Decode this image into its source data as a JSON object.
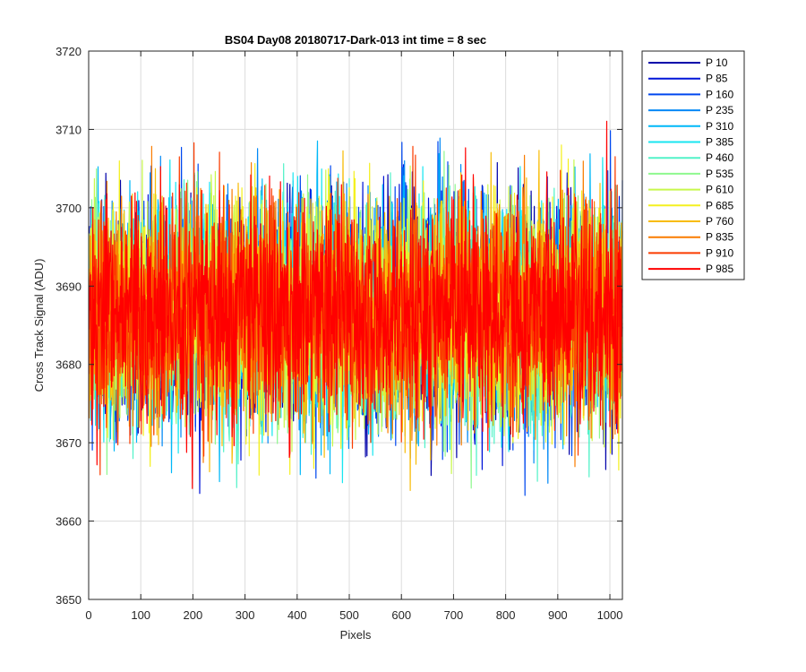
{
  "chart_data": {
    "type": "line",
    "title": "BS04 Day08 20180717-Dark-013 int time = 8 sec",
    "xlabel": "Pixels",
    "ylabel": "Cross Track Signal (ADU)",
    "xlim": [
      0,
      1024
    ],
    "ylim": [
      3650,
      3720
    ],
    "xticks": [
      0,
      100,
      200,
      300,
      400,
      500,
      600,
      700,
      800,
      900,
      1000
    ],
    "yticks": [
      3650,
      3660,
      3670,
      3680,
      3690,
      3700,
      3710,
      3720
    ],
    "grid": true,
    "legend_position": "outside-top-right",
    "points_per_series": 1024,
    "noise_mean": 3686.5,
    "noise_sd": 7.2,
    "series": [
      {
        "name": "P 10",
        "color": "#0000aa"
      },
      {
        "name": "P 85",
        "color": "#0014d8"
      },
      {
        "name": "P 160",
        "color": "#0048ef"
      },
      {
        "name": "P 235",
        "color": "#0088f6"
      },
      {
        "name": "P 310",
        "color": "#00b8f8"
      },
      {
        "name": "P 385",
        "color": "#18e6f0"
      },
      {
        "name": "P 460",
        "color": "#52f2c8"
      },
      {
        "name": "P 535",
        "color": "#8ef88e"
      },
      {
        "name": "P 610",
        "color": "#c8f84c"
      },
      {
        "name": "P 685",
        "color": "#f4f020"
      },
      {
        "name": "P 760",
        "color": "#f8bc08"
      },
      {
        "name": "P 835",
        "color": "#fa7c00"
      },
      {
        "name": "P 910",
        "color": "#fb3c00"
      },
      {
        "name": "P 985",
        "color": "#ff0000"
      }
    ]
  }
}
